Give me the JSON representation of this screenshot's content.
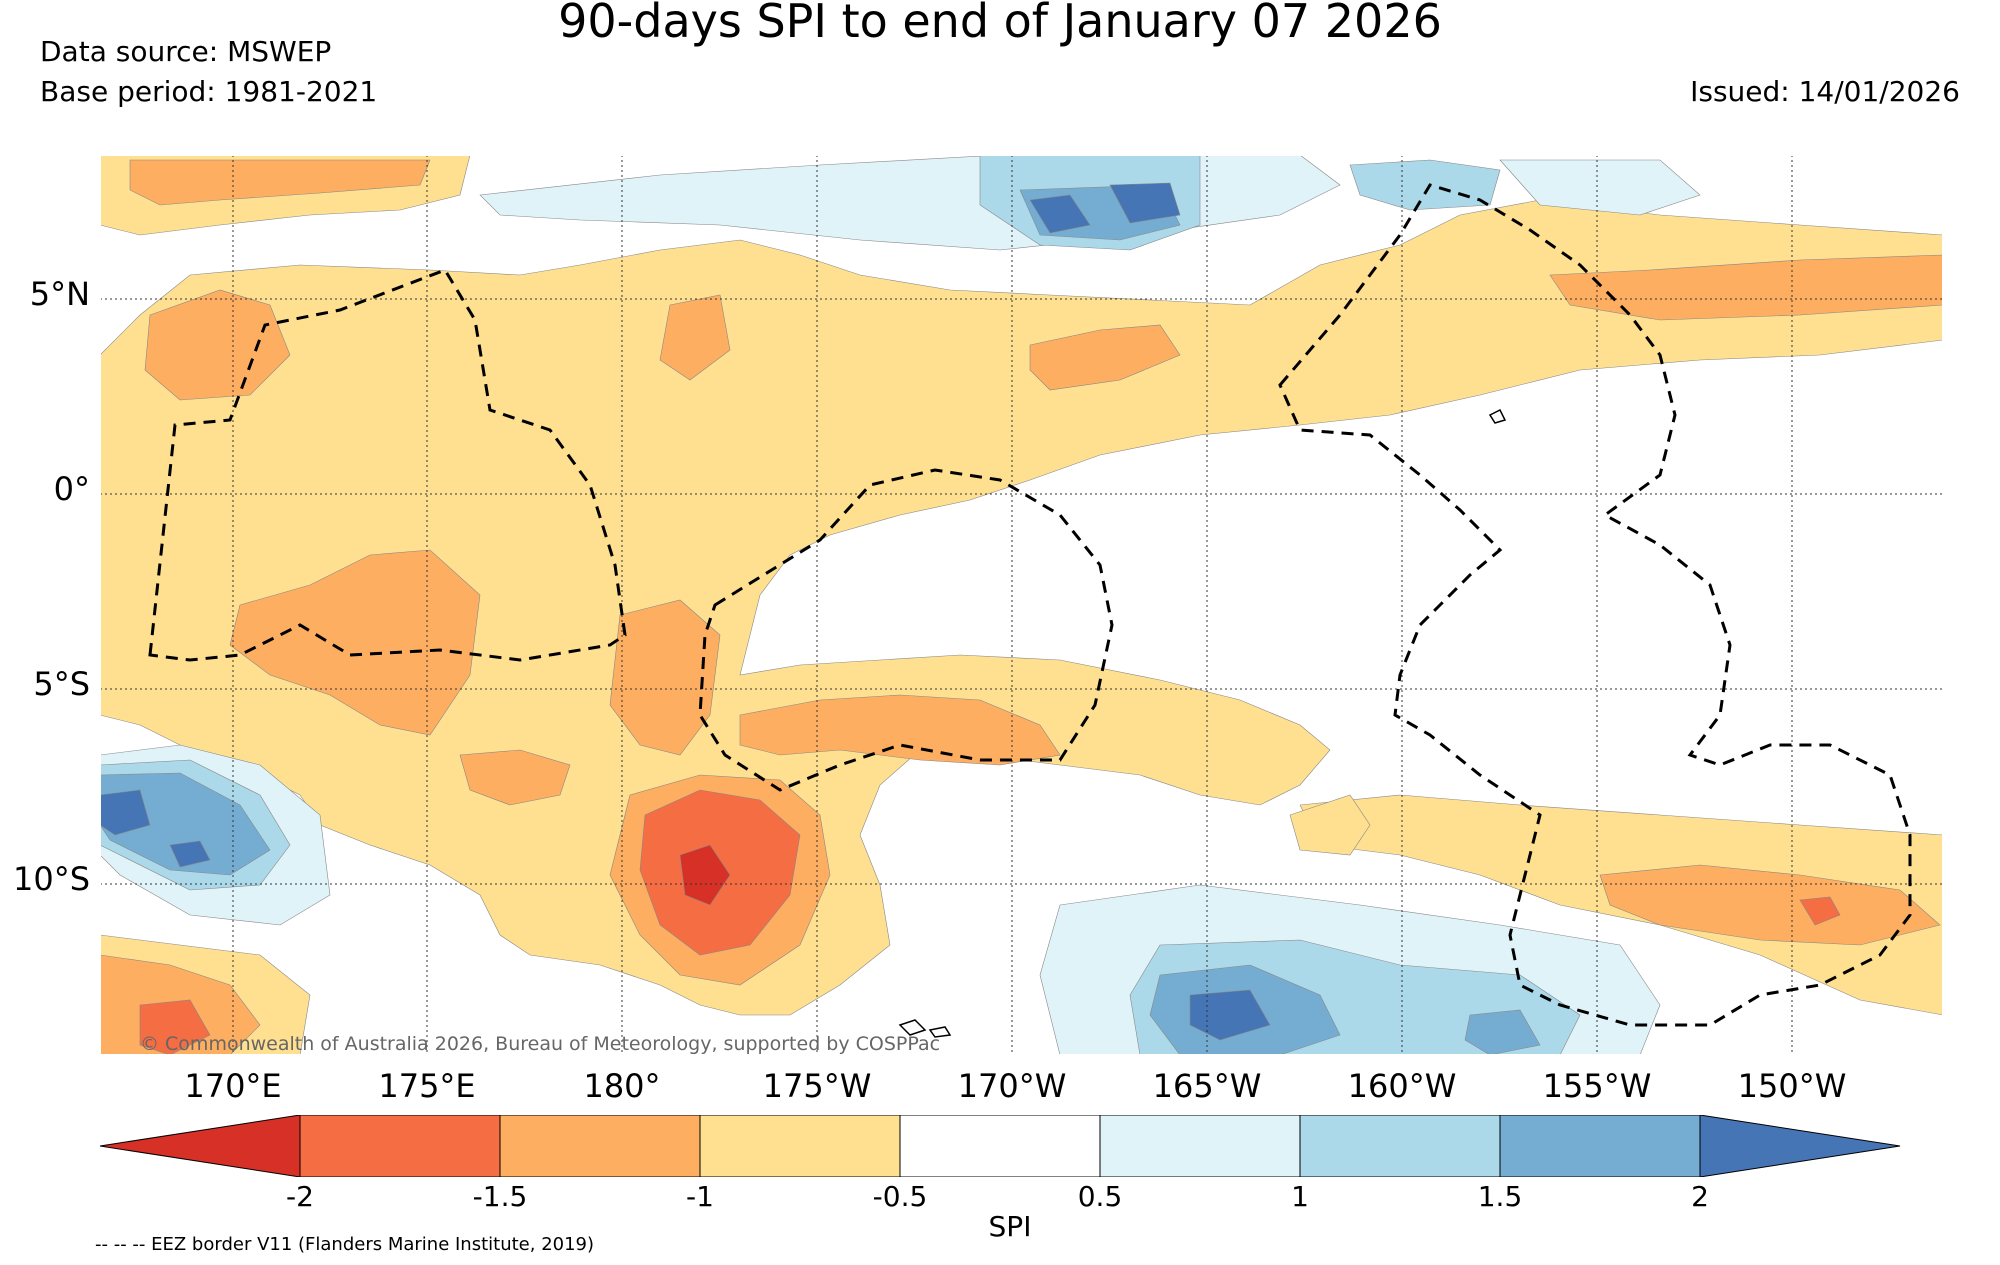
{
  "title": "90-days SPI to end of January 07 2026",
  "data_source": "Data source: MSWEP",
  "base_period": "Base period: 1981-2021",
  "issued": "Issued: 14/01/2026",
  "copyright": "© Commonwealth of Australia 2026, Bureau of Meteorology, supported by COSPPac",
  "eez_note": "-- -- -- EEZ border V11 (Flanders Marine Institute, 2019)",
  "lat_labels": [
    "5°N",
    "0°",
    "5°S",
    "10°S"
  ],
  "lon_labels": [
    "170°E",
    "175°E",
    "180°",
    "175°W",
    "170°W",
    "165°W",
    "160°W",
    "155°W",
    "150°W"
  ],
  "colorbar": {
    "title": "SPI",
    "ticks": [
      "-2",
      "-1.5",
      "-1",
      "-0.5",
      "0.5",
      "1",
      "1.5",
      "2"
    ],
    "colors": [
      "#d73027",
      "#f46d43",
      "#fdae61",
      "#fee090",
      "#ffffff",
      "#e0f3f8",
      "#abd9e9",
      "#74add1",
      "#4575b4"
    ]
  }
}
